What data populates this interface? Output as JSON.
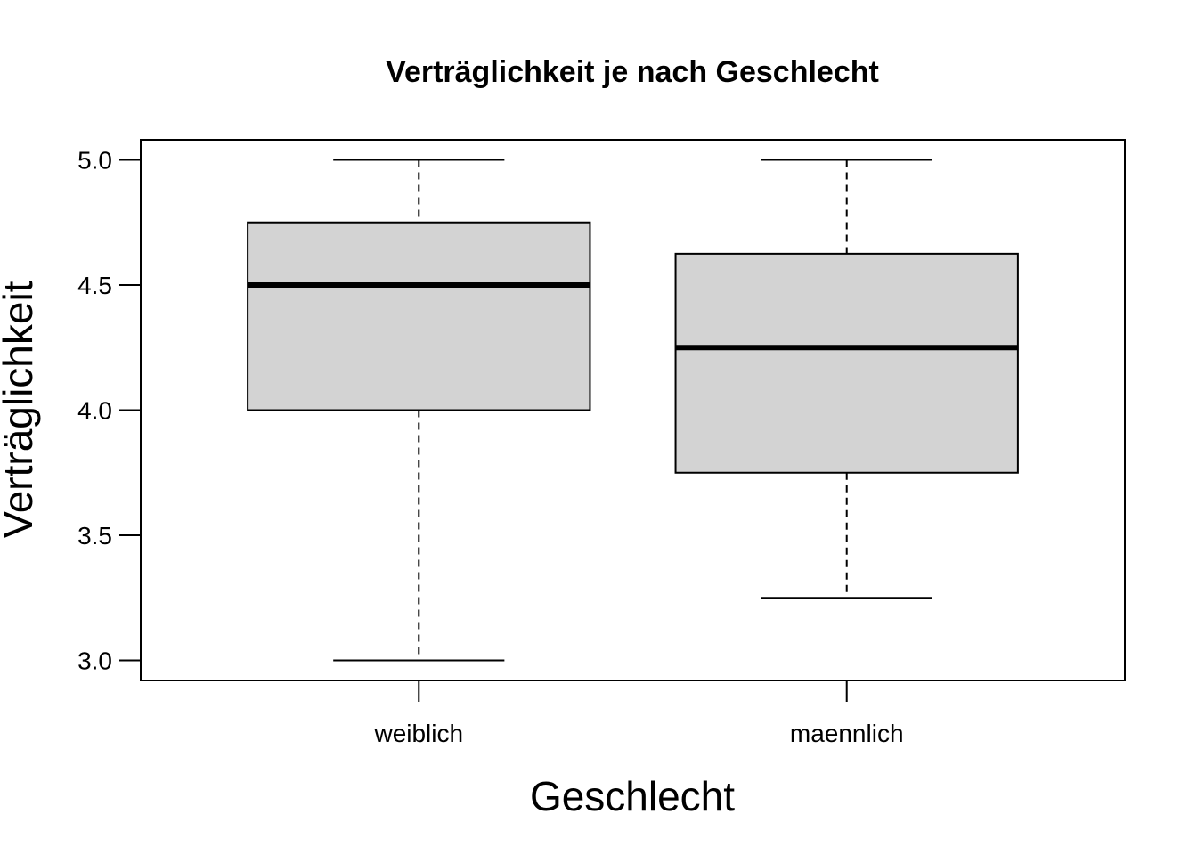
{
  "chart_data": {
    "type": "boxplot",
    "title": "Verträglichkeit je nach Geschlecht",
    "xlabel": "Geschlecht",
    "ylabel": "Verträglichkeit",
    "categories": [
      "weiblich",
      "maennlich"
    ],
    "boxes": [
      {
        "category": "weiblich",
        "whisker_low": 3.0,
        "q1": 4.0,
        "median": 4.5,
        "q3": 4.75,
        "whisker_high": 5.0
      },
      {
        "category": "maennlich",
        "whisker_low": 3.25,
        "q1": 3.75,
        "median": 4.25,
        "q3": 4.625,
        "whisker_high": 5.0
      }
    ],
    "yticks": [
      "3.0",
      "3.5",
      "4.0",
      "4.5",
      "5.0"
    ],
    "ylim": [
      2.92,
      5.08
    ],
    "grid": false,
    "box_fill": "#d3d3d3"
  }
}
